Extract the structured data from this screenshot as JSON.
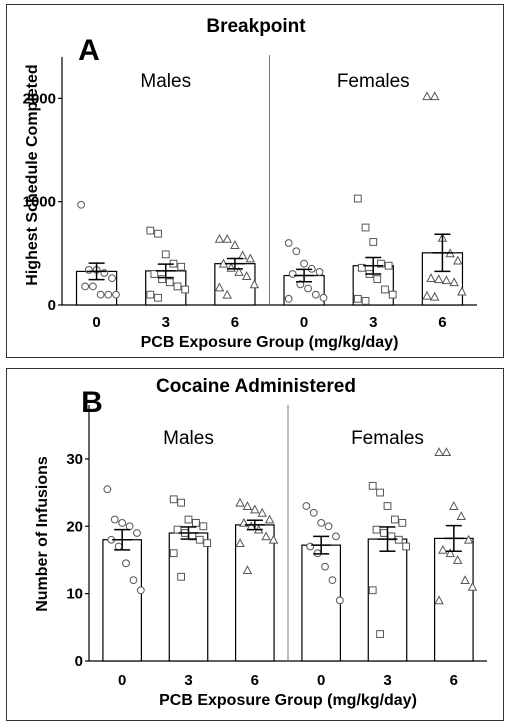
{
  "x_axis_label": "PCB Exposure Group (mg/kg/day)",
  "colors": {
    "frame": "#333333",
    "bar_fill": "#ffffff",
    "bar_stroke": "#000000",
    "marker": "#555555"
  },
  "chart_data": [
    {
      "type": "bar",
      "panel_letter": "A",
      "title": "Breakpoint",
      "ylabel": "Highest Schedule Completed",
      "xlabel": "PCB Exposure Group (mg/kg/day)",
      "ylim": [
        0,
        2400
      ],
      "yticks": [
        0,
        1000,
        2000
      ],
      "groups": [
        "Males",
        "Females"
      ],
      "categories": [
        "0",
        "3",
        "6"
      ],
      "marker_shapes": [
        "circle",
        "square",
        "triangle"
      ],
      "series": [
        {
          "group": "Males",
          "dose": "0",
          "mean": 325,
          "sem": 80,
          "points": [
            970,
            340,
            340,
            310,
            260,
            180,
            180,
            100,
            100,
            100
          ]
        },
        {
          "group": "Males",
          "dose": "3",
          "mean": 330,
          "sem": 65,
          "points": [
            720,
            690,
            490,
            400,
            370,
            300,
            250,
            220,
            180,
            150,
            100,
            70
          ]
        },
        {
          "group": "Males",
          "dose": "6",
          "mean": 400,
          "sem": 50,
          "points": [
            640,
            640,
            580,
            480,
            450,
            400,
            360,
            320,
            280,
            200,
            170,
            100
          ]
        },
        {
          "group": "Females",
          "dose": "0",
          "mean": 285,
          "sem": 60,
          "points": [
            600,
            520,
            400,
            350,
            320,
            300,
            200,
            160,
            100,
            70,
            60
          ]
        },
        {
          "group": "Females",
          "dose": "3",
          "mean": 380,
          "sem": 80,
          "points": [
            1030,
            750,
            610,
            400,
            380,
            360,
            300,
            250,
            150,
            100,
            60,
            40
          ]
        },
        {
          "group": "Females",
          "dose": "6",
          "mean": 505,
          "sem": 180,
          "points": [
            2020,
            2020,
            650,
            500,
            430,
            260,
            250,
            240,
            220,
            130,
            90,
            80
          ]
        }
      ]
    },
    {
      "type": "bar",
      "panel_letter": "B",
      "title": "Cocaine Administered",
      "ylabel": "Number of Infusions",
      "xlabel": "PCB Exposure Group (mg/kg/day)",
      "ylim": [
        0,
        38
      ],
      "yticks": [
        0,
        10,
        20,
        30
      ],
      "groups": [
        "Males",
        "Females"
      ],
      "categories": [
        "0",
        "3",
        "6"
      ],
      "marker_shapes": [
        "circle",
        "square",
        "triangle"
      ],
      "series": [
        {
          "group": "Males",
          "dose": "0",
          "mean": 18,
          "sem": 1.5,
          "points": [
            25.5,
            21,
            20.5,
            20,
            19,
            18,
            17,
            14.5,
            12,
            10.5
          ]
        },
        {
          "group": "Males",
          "dose": "3",
          "mean": 19,
          "sem": 0.9,
          "points": [
            24,
            23.5,
            21,
            20.5,
            20,
            19.5,
            19,
            18.5,
            18,
            17.5,
            16,
            12.5
          ]
        },
        {
          "group": "Males",
          "dose": "6",
          "mean": 20.2,
          "sem": 0.7,
          "points": [
            23.5,
            23,
            22.5,
            22,
            21,
            20.5,
            20,
            19.5,
            18.5,
            18,
            17.5,
            13.5
          ]
        },
        {
          "group": "Females",
          "dose": "0",
          "mean": 17.2,
          "sem": 1.3,
          "points": [
            23,
            22,
            20.5,
            20,
            18.5,
            17,
            16,
            14,
            12,
            9
          ]
        },
        {
          "group": "Females",
          "dose": "3",
          "mean": 18.1,
          "sem": 1.8,
          "points": [
            26,
            25,
            23,
            21,
            20.5,
            19.5,
            19,
            18.5,
            18,
            17,
            10.5,
            4
          ]
        },
        {
          "group": "Females",
          "dose": "6",
          "mean": 18.2,
          "sem": 1.9,
          "points": [
            31,
            31,
            23,
            21.5,
            18,
            16.5,
            16,
            15,
            12,
            11,
            9
          ]
        }
      ]
    }
  ]
}
